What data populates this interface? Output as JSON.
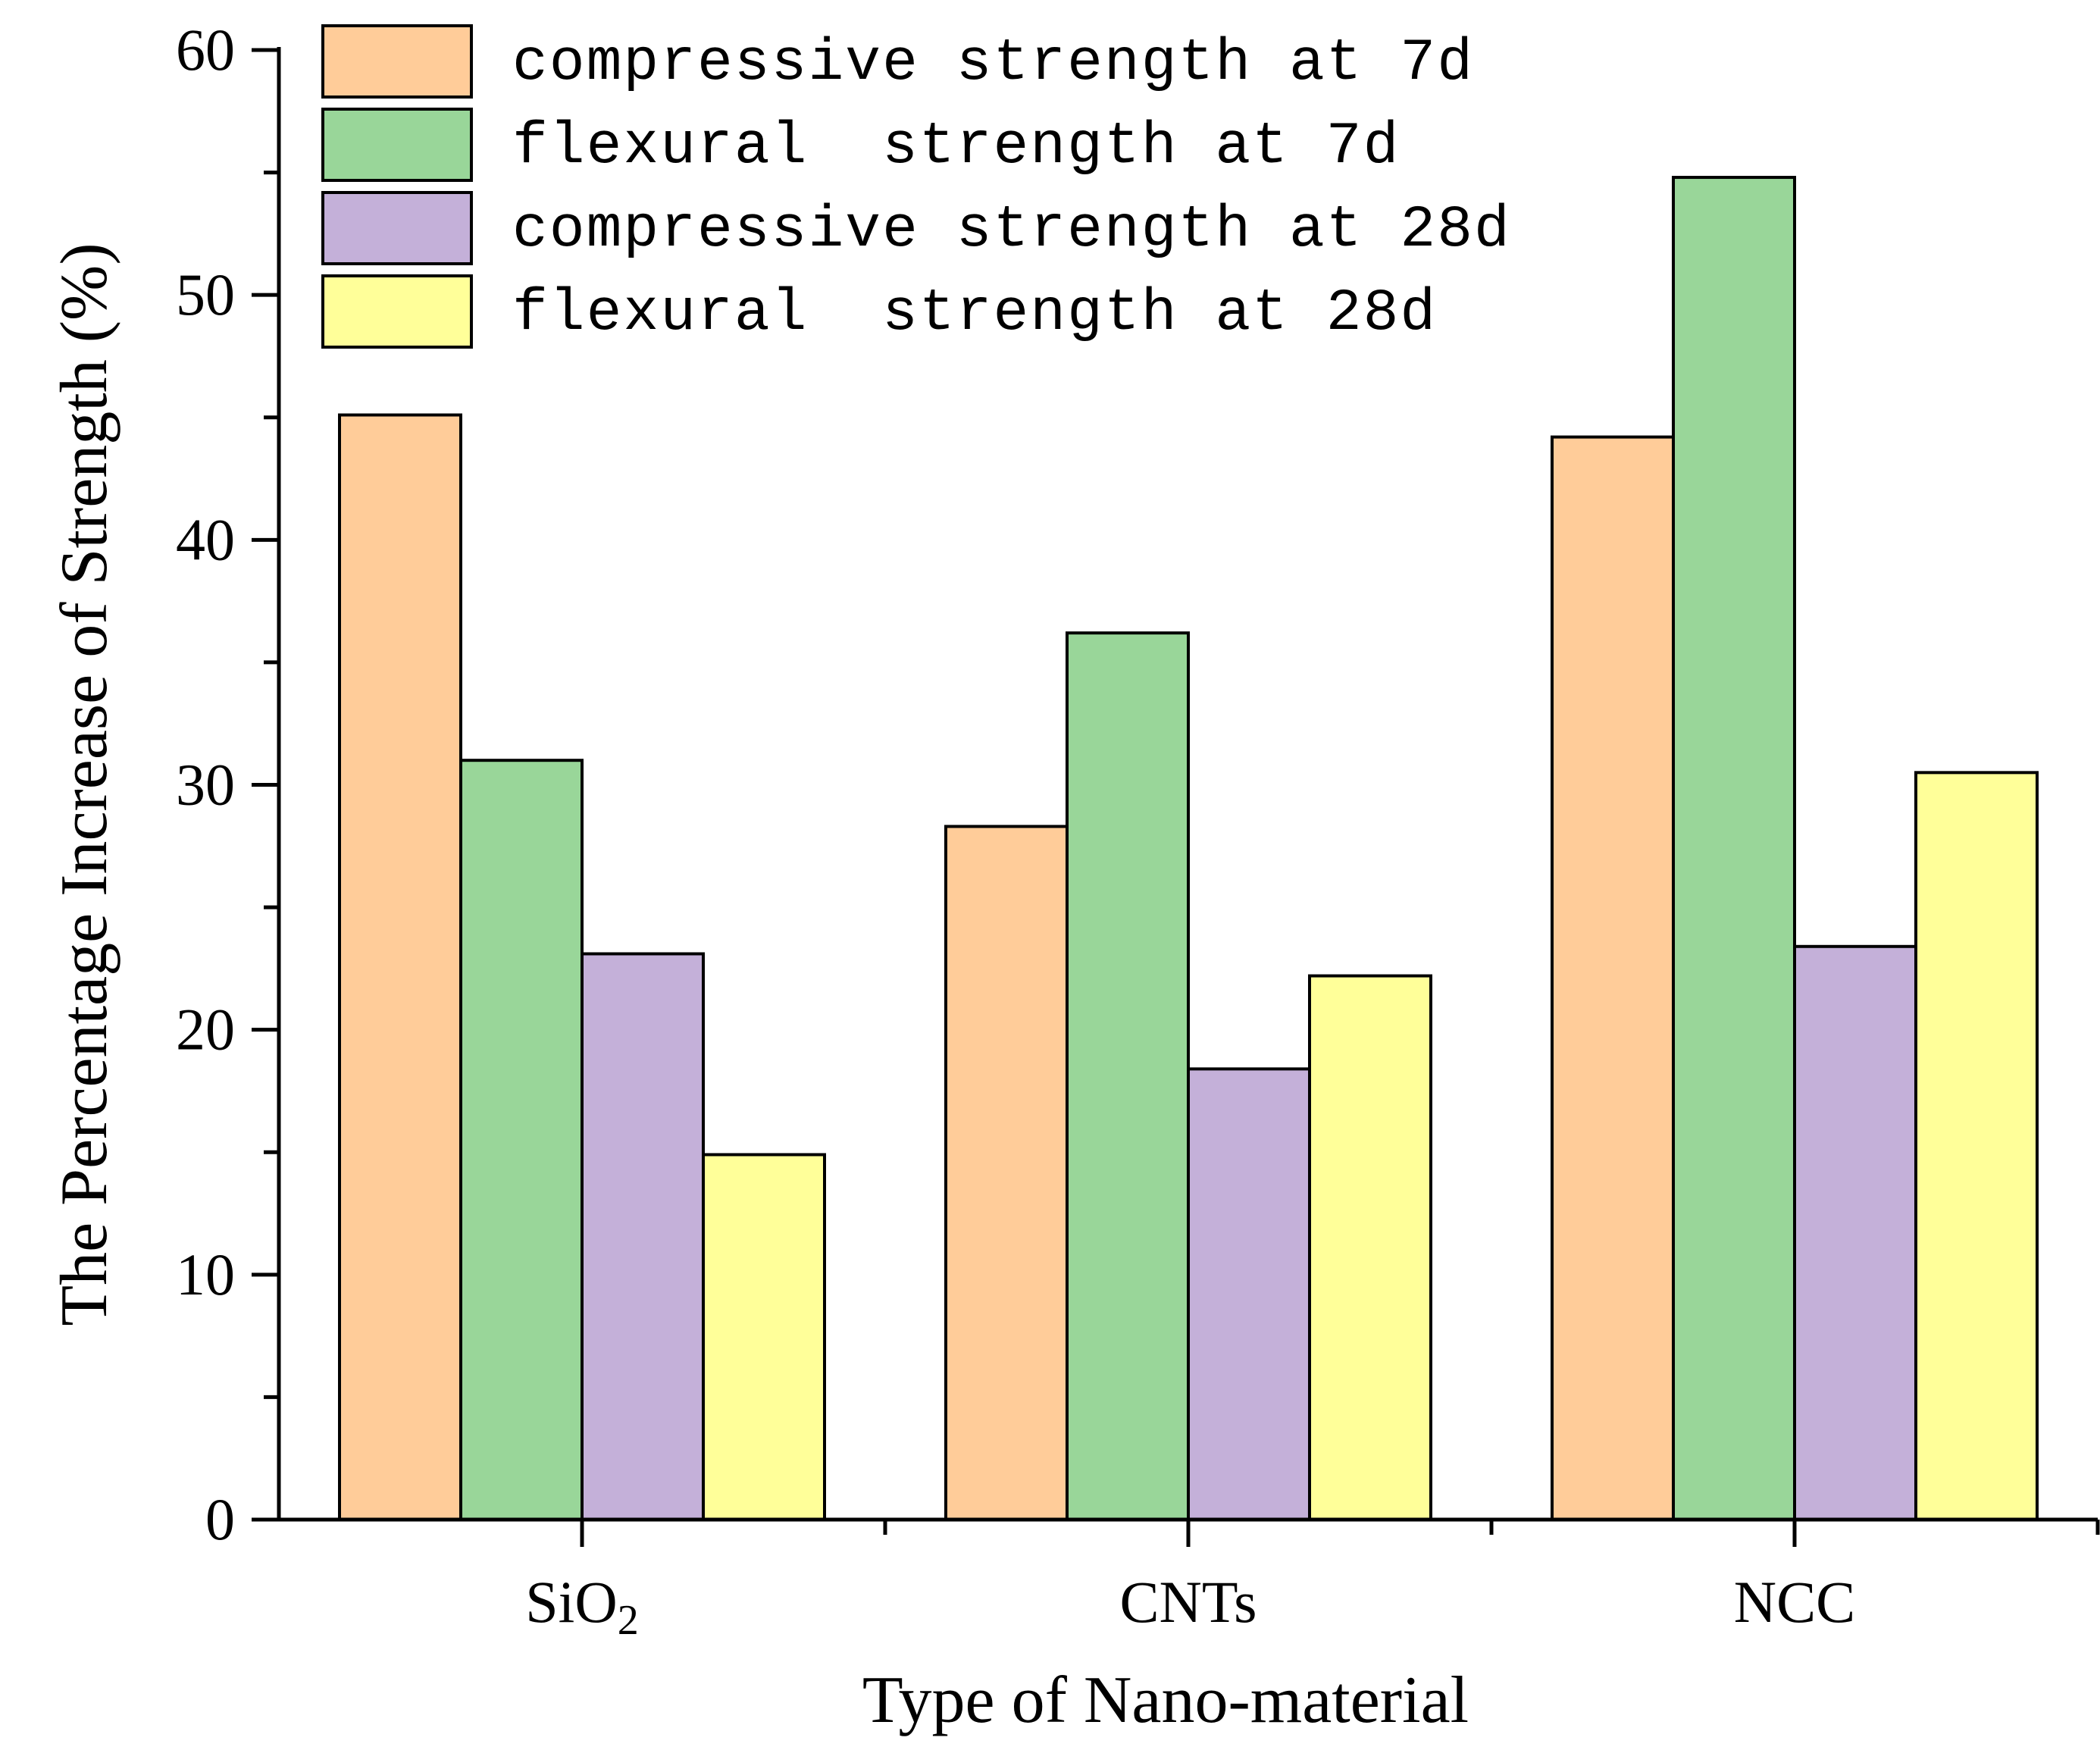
{
  "chart_data": {
    "type": "bar",
    "title": "",
    "xlabel": "Type of Nano-material",
    "ylabel": "The Percentage Increase of Strength (%)",
    "categories": [
      {
        "label": "SiO",
        "subscript": "2"
      },
      {
        "label": "CNTs",
        "subscript": ""
      },
      {
        "label": "NCC",
        "subscript": ""
      }
    ],
    "ylim": [
      0,
      60
    ],
    "yticks": [
      0,
      10,
      20,
      30,
      40,
      50,
      60
    ],
    "legend_position": "top-left",
    "series": [
      {
        "name": "compressive strength at 7d",
        "color": "#ffcc99",
        "values": [
          45.1,
          28.3,
          44.2
        ]
      },
      {
        "name": "flexural  strength at 7d",
        "color": "#99d699",
        "values": [
          31.0,
          36.2,
          54.8
        ]
      },
      {
        "name": "compressive strength at 28d",
        "color": "#c4b0d9",
        "values": [
          23.1,
          18.4,
          23.4
        ]
      },
      {
        "name": "flexural  strength at 28d",
        "color": "#ffff99",
        "values": [
          14.9,
          22.2,
          30.5
        ]
      }
    ]
  }
}
